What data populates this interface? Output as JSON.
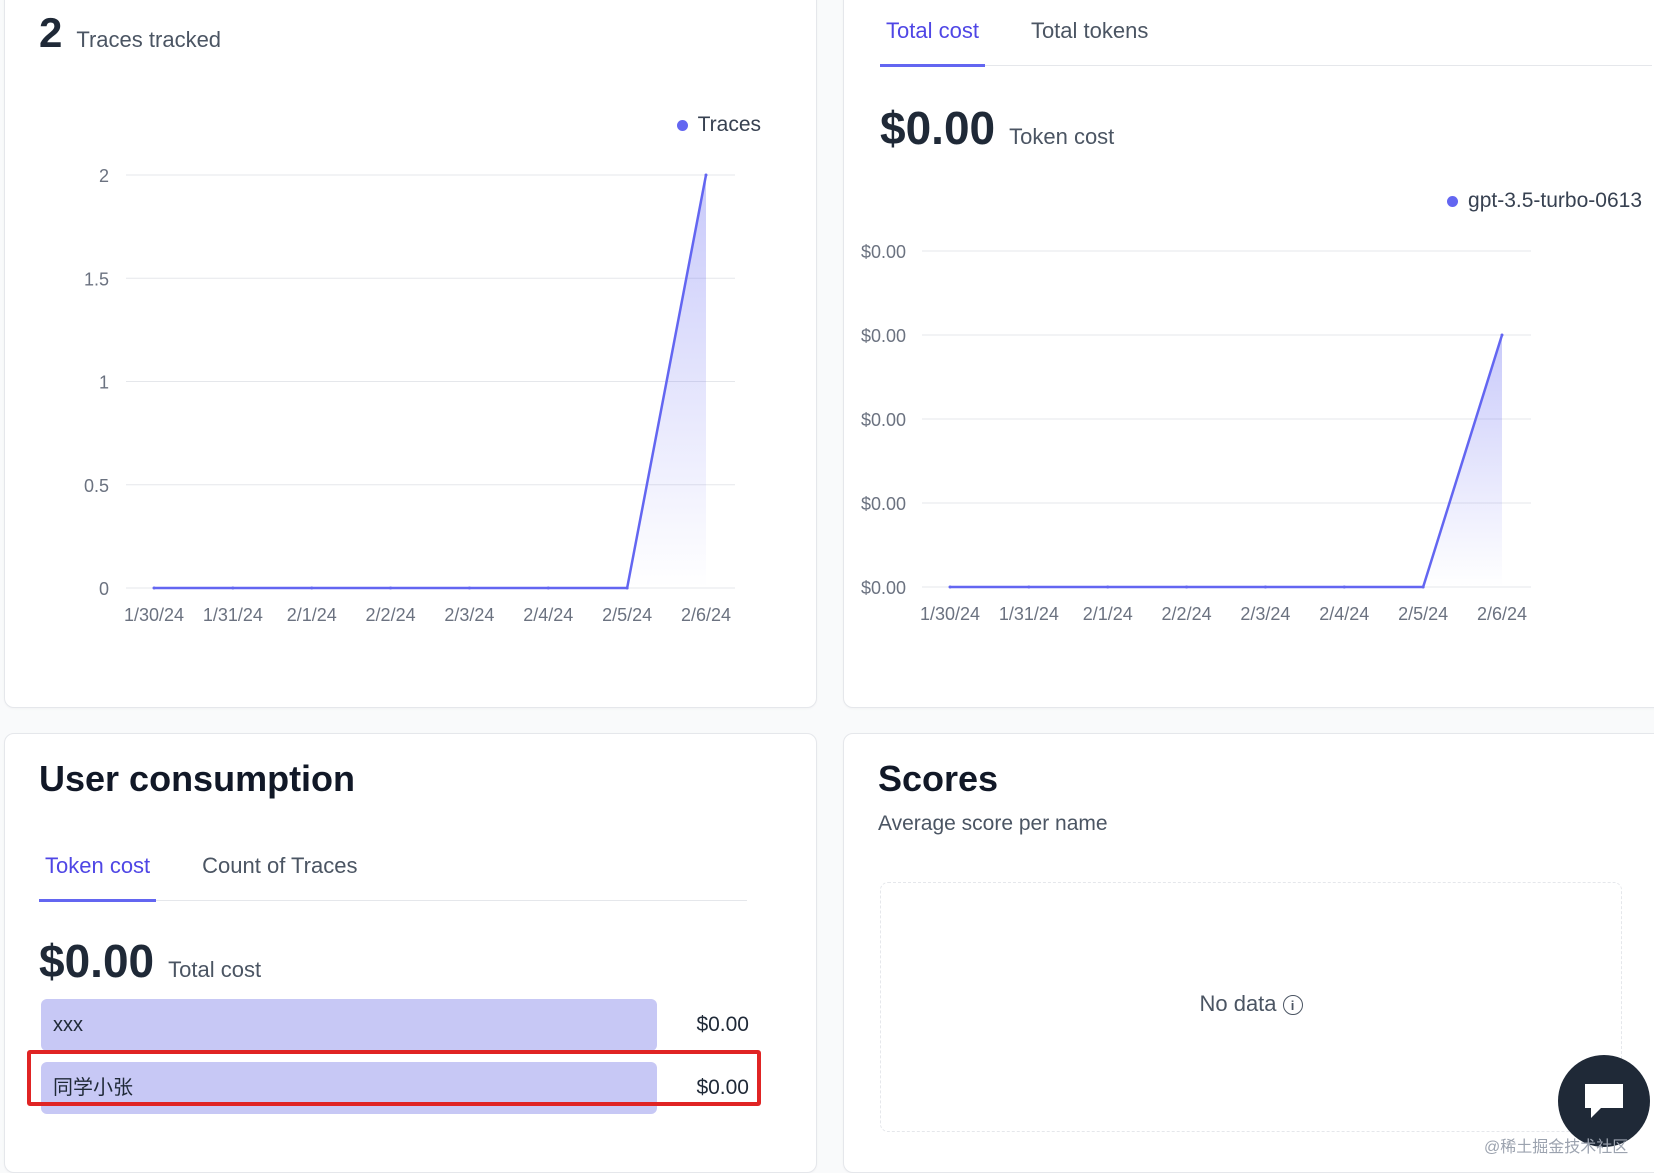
{
  "colors": {
    "accent": "#6366f1",
    "bar": "#c7c8f5",
    "highlight": "#e02424"
  },
  "traces": {
    "count": "2",
    "label": "Traces tracked",
    "chart_data": {
      "type": "area",
      "x": [
        "1/30/24",
        "1/31/24",
        "2/1/24",
        "2/2/24",
        "2/3/24",
        "2/4/24",
        "2/5/24",
        "2/6/24"
      ],
      "series": [
        {
          "name": "Traces",
          "values": [
            0,
            0,
            0,
            0,
            0,
            0,
            0,
            2
          ]
        }
      ],
      "yticks": [
        "0",
        "0.5",
        "1",
        "1.5",
        "2"
      ],
      "ylim": [
        0,
        2
      ],
      "grid": true,
      "legend": "top-right"
    }
  },
  "cost": {
    "tabs": [
      "Total cost",
      "Total tokens"
    ],
    "active_tab": 0,
    "value": "$0.00",
    "label": "Token cost",
    "chart_data": {
      "type": "area",
      "x": [
        "1/30/24",
        "1/31/24",
        "2/1/24",
        "2/2/24",
        "2/3/24",
        "2/4/24",
        "2/5/24",
        "2/6/24"
      ],
      "series": [
        {
          "name": "gpt-3.5-turbo-0613",
          "values": [
            0,
            0,
            0,
            0,
            0,
            0,
            0,
            3
          ]
        }
      ],
      "yticks": [
        "$0.00",
        "$0.00",
        "$0.00",
        "$0.00",
        "$0.00"
      ],
      "ylim": [
        0,
        4
      ],
      "grid": true,
      "legend": "top-right"
    }
  },
  "users": {
    "title": "User consumption",
    "tabs": [
      "Token cost",
      "Count of Traces"
    ],
    "active_tab": 0,
    "value": "$0.00",
    "label": "Total cost",
    "rows": [
      {
        "name": "xxx",
        "value": "$0.00",
        "fraction": 0.87
      },
      {
        "name": "同学小张",
        "value": "$0.00",
        "fraction": 0.87
      }
    ]
  },
  "scores": {
    "title": "Scores",
    "subtitle": "Average score per name",
    "empty_text": "No data",
    "info_icon": "i"
  },
  "icons": {
    "chat": "chat-bubble-icon",
    "info": "info-circle-icon"
  },
  "watermark": "@稀土掘金技术社区"
}
